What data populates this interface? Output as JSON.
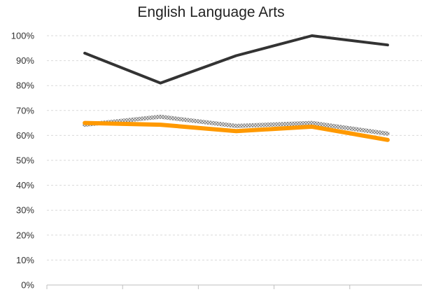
{
  "chart_data": {
    "type": "line",
    "title": "English Language Arts",
    "xlabel": "",
    "ylabel": "",
    "x": [
      "",
      "",
      "",
      "",
      ""
    ],
    "ylim": [
      0,
      1
    ],
    "y_ticks": [
      "0%",
      "10%",
      "20%",
      "30%",
      "40%",
      "50%",
      "60%",
      "70%",
      "80%",
      "90%",
      "100%"
    ],
    "grid": "horizontal dashed",
    "series": [
      {
        "values": [
          0.93,
          0.81,
          0.92,
          1.0,
          0.963
        ],
        "color": "#333333",
        "style": "solid"
      },
      {
        "values": [
          0.643,
          0.675,
          0.638,
          0.65,
          0.607
        ],
        "color": "#b3b3b3",
        "style": "patterned"
      },
      {
        "values": [
          0.65,
          0.643,
          0.617,
          0.635,
          0.582
        ],
        "color": "#ff9900",
        "style": "solid-thick"
      }
    ]
  }
}
